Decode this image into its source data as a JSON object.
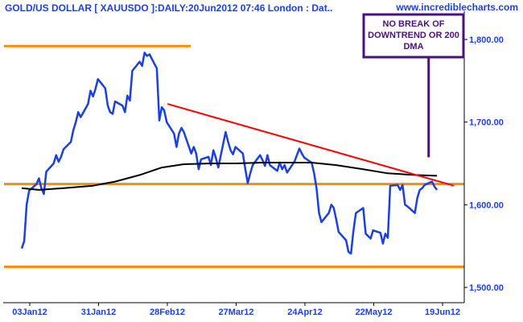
{
  "chart_data": {
    "type": "line",
    "title": "GOLD/US DOLLAR [ XAUUSDO ]:DAILY:20Jun2012 07:46 London : Dat..",
    "watermark": "www.incrediblecharts.com",
    "annotation": "NO BREAK OF DOWNTREND OR 200 DMA",
    "x_ticks": [
      "03Jan12",
      "31Jan12",
      "28Feb12",
      "27Mar12",
      "24Apr12",
      "22May12",
      "19Jun12"
    ],
    "y_ticks": [
      "1,500.00",
      "1,600.00",
      "1,700.00",
      "1,800.00"
    ],
    "ylim": [
      1490,
      1820
    ],
    "grid": false,
    "colors": {
      "price": "#1c3fe0",
      "ma": "#000000",
      "support_resistance": "#ff8c00",
      "trendline": "#ff0000",
      "annotation_box": "#4b1080",
      "axis_text": "#1c3fe0",
      "title": "#1c3fe0"
    },
    "series": [
      {
        "kind": "price",
        "x": [
          "2012-01-03",
          "2012-01-04",
          "2012-01-05",
          "2012-01-06",
          "2012-01-09",
          "2012-01-10",
          "2012-01-11",
          "2012-01-12",
          "2012-01-13",
          "2012-01-16",
          "2012-01-17",
          "2012-01-18",
          "2012-01-19",
          "2012-01-20",
          "2012-01-23",
          "2012-01-24",
          "2012-01-25",
          "2012-01-26",
          "2012-01-27",
          "2012-01-30",
          "2012-01-31",
          "2012-02-01",
          "2012-02-02",
          "2012-02-03",
          "2012-02-06",
          "2012-02-07",
          "2012-02-08",
          "2012-02-09",
          "2012-02-10",
          "2012-02-13",
          "2012-02-14",
          "2012-02-15",
          "2012-02-16",
          "2012-02-17",
          "2012-02-20",
          "2012-02-21",
          "2012-02-22",
          "2012-02-23",
          "2012-02-24",
          "2012-02-27",
          "2012-02-28",
          "2012-02-29",
          "2012-03-01",
          "2012-03-02",
          "2012-03-05",
          "2012-03-06",
          "2012-03-07",
          "2012-03-08",
          "2012-03-09",
          "2012-03-12",
          "2012-03-13",
          "2012-03-14",
          "2012-03-15",
          "2012-03-16",
          "2012-03-19",
          "2012-03-20",
          "2012-03-21",
          "2012-03-22",
          "2012-03-23",
          "2012-03-26",
          "2012-03-27",
          "2012-03-28",
          "2012-03-29",
          "2012-03-30",
          "2012-04-02",
          "2012-04-03",
          "2012-04-04",
          "2012-04-05",
          "2012-04-06",
          "2012-04-09",
          "2012-04-10",
          "2012-04-11",
          "2012-04-12",
          "2012-04-13",
          "2012-04-16",
          "2012-04-17",
          "2012-04-18",
          "2012-04-19",
          "2012-04-20",
          "2012-04-23",
          "2012-04-24",
          "2012-04-25",
          "2012-04-26",
          "2012-04-27",
          "2012-04-30",
          "2012-05-01",
          "2012-05-02",
          "2012-05-03",
          "2012-05-04",
          "2012-05-07",
          "2012-05-08",
          "2012-05-09",
          "2012-05-10",
          "2012-05-11",
          "2012-05-14",
          "2012-05-15",
          "2012-05-16",
          "2012-05-17",
          "2012-05-18",
          "2012-05-21",
          "2012-05-22",
          "2012-05-23",
          "2012-05-24",
          "2012-05-25",
          "2012-05-28",
          "2012-05-29",
          "2012-05-30",
          "2012-05-31",
          "2012-06-01",
          "2012-06-04",
          "2012-06-05",
          "2012-06-06",
          "2012-06-07",
          "2012-06-08",
          "2012-06-11",
          "2012-06-12",
          "2012-06-13",
          "2012-06-14",
          "2012-06-15",
          "2012-06-18",
          "2012-06-19",
          "2012-06-20"
        ],
        "values": [
          1547,
          1556,
          1600,
          1617,
          1625,
          1632,
          1620,
          1613,
          1640,
          1650,
          1660,
          1652,
          1658,
          1667,
          1676,
          1690,
          1700,
          1712,
          1706,
          1722,
          1738,
          1731,
          1740,
          1752,
          1741,
          1720,
          1712,
          1710,
          1725,
          1720,
          1712,
          1732,
          1726,
          1762,
          1773,
          1768,
          1784,
          1780,
          1782,
          1765,
          1702,
          1718,
          1714,
          1700,
          1686,
          1670,
          1686,
          1693,
          1688,
          1662,
          1670,
          1662,
          1643,
          1655,
          1658,
          1648,
          1666,
          1657,
          1645,
          1688,
          1676,
          1666,
          1661,
          1670,
          1662,
          1643,
          1626,
          1638,
          1648,
          1660,
          1654,
          1647,
          1660,
          1648,
          1641,
          1651,
          1643,
          1648,
          1639,
          1652,
          1660,
          1668,
          1662,
          1657,
          1651,
          1638,
          1620,
          1590,
          1579,
          1590,
          1600,
          1596,
          1582,
          1567,
          1557,
          1543,
          1541,
          1568,
          1590,
          1596,
          1565,
          1562,
          1559,
          1569,
          1566,
          1553,
          1565,
          1560,
          1623,
          1624,
          1618,
          1624,
          1600,
          1598,
          1590,
          1608,
          1618,
          1620,
          1624,
          1628,
          1622,
          1618
        ]
      },
      {
        "kind": "ma",
        "x": [
          "2012-01-03",
          "2012-01-10",
          "2012-01-20",
          "2012-02-01",
          "2012-02-10",
          "2012-02-20",
          "2012-02-29",
          "2012-03-09",
          "2012-03-20",
          "2012-03-30",
          "2012-04-10",
          "2012-04-20",
          "2012-04-30",
          "2012-05-10",
          "2012-05-21",
          "2012-05-31",
          "2012-06-11",
          "2012-06-20"
        ],
        "values": [
          1620,
          1618,
          1620,
          1623,
          1628,
          1636,
          1645,
          1649,
          1650,
          1650,
          1651,
          1651,
          1651,
          1648,
          1643,
          1638,
          1636,
          1635
        ]
      }
    ],
    "horizontal_lines": [
      {
        "y": 1792,
        "x_start": "2012-01-03",
        "x_end": "2012-02-29"
      },
      {
        "y": 1625,
        "x_start": "2012-01-03",
        "x_end": "2012-06-26"
      },
      {
        "y": 1525,
        "x_start": "2012-01-03",
        "x_end": "2012-06-26"
      }
    ],
    "trendline": {
      "x": [
        "2012-03-01",
        "2012-06-21"
      ],
      "y": [
        1722,
        1625
      ]
    },
    "annotation_pointer": {
      "x": "2012-06-14",
      "y_from": 1770,
      "y_to": 1638
    }
  }
}
